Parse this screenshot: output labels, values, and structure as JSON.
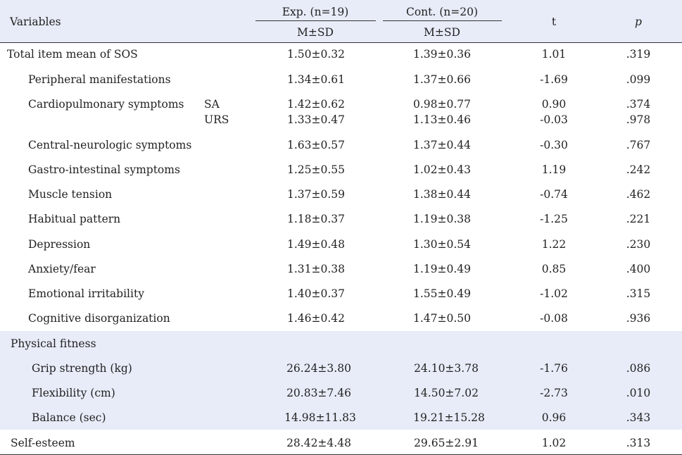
{
  "header": {
    "variables": "Variables",
    "exp": "Exp. (n=19)",
    "cont": "Cont. (n=20)",
    "msd_exp": "M±SD",
    "msd_cont": "M±SD",
    "t": "t",
    "p": "p"
  },
  "rows": [
    {
      "label": "Total item mean of SOS",
      "sub": "",
      "exp": "1.50±0.32",
      "cont": "1.39±0.36",
      "t": "1.01",
      "p": ".319"
    },
    {
      "label": "Peripheral manifestations",
      "sub": "",
      "exp": "1.34±0.61",
      "cont": "1.37±0.66",
      "t": "-1.69",
      "p": ".099"
    },
    {
      "label": "Cardiopulmonary symptoms",
      "sub": "SA",
      "exp": "1.42±0.62",
      "cont": "0.98±0.77",
      "t": "0.90",
      "p": ".374"
    },
    {
      "label": "",
      "sub": "URS",
      "exp": "1.33±0.47",
      "cont": "1.13±0.46",
      "t": "-0.03",
      "p": ".978"
    },
    {
      "label": "Central-neurologic symptoms",
      "sub": "",
      "exp": "1.63±0.57",
      "cont": "1.37±0.44",
      "t": "-0.30",
      "p": ".767"
    },
    {
      "label": "Gastro-intestinal symptoms",
      "sub": "",
      "exp": "1.25±0.55",
      "cont": "1.02±0.43",
      "t": "1.19",
      "p": ".242"
    },
    {
      "label": "Muscle tension",
      "sub": "",
      "exp": "1.37±0.59",
      "cont": "1.38±0.44",
      "t": "-0.74",
      "p": ".462"
    },
    {
      "label": "Habitual pattern",
      "sub": "",
      "exp": "1.18±0.37",
      "cont": "1.19±0.38",
      "t": "-1.25",
      "p": ".221"
    },
    {
      "label": "Depression",
      "sub": "",
      "exp": "1.49±0.48",
      "cont": "1.30±0.54",
      "t": "1.22",
      "p": ".230"
    },
    {
      "label": "Anxiety/fear",
      "sub": "",
      "exp": "1.31±0.38",
      "cont": "1.19±0.49",
      "t": "0.85",
      "p": ".400"
    },
    {
      "label": "Emotional irritability",
      "sub": "",
      "exp": "1.40±0.37",
      "cont": "1.55±0.49",
      "t": "-1.02",
      "p": ".315"
    },
    {
      "label": "Cognitive disorganization",
      "sub": "",
      "exp": "1.46±0.42",
      "cont": "1.47±0.50",
      "t": "-0.08",
      "p": ".936"
    },
    {
      "label": "Physical fitness",
      "sub": "",
      "exp": "",
      "cont": "",
      "t": "",
      "p": ""
    },
    {
      "label": "Grip strength (kg)",
      "sub": "",
      "exp": "26.24±3.80",
      "cont": "24.10±3.78",
      "t": "-1.76",
      "p": ".086"
    },
    {
      "label": "Flexibility (cm)",
      "sub": "",
      "exp": "20.83±7.46",
      "cont": "14.50±7.02",
      "t": "-2.73",
      "p": ".010"
    },
    {
      "label": "Balance (sec)",
      "sub": "",
      "exp": "14.98±11.83",
      "cont": "19.21±15.28",
      "t": "0.96",
      "p": ".343"
    },
    {
      "label": "Self-esteem",
      "sub": "",
      "exp": "28.42±4.48",
      "cont": "29.65±2.91",
      "t": "1.02",
      "p": ".313"
    }
  ]
}
